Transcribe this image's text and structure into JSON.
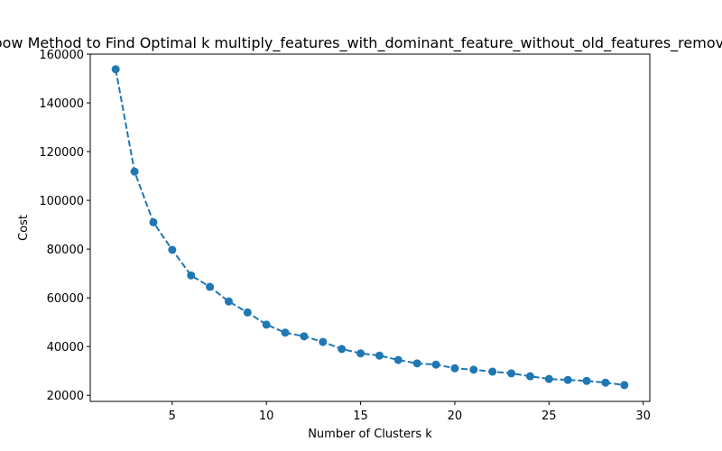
{
  "chart_data": {
    "type": "line",
    "title": "Elbow Method to Find Optimal k multiply_features_with_dominant_feature_without_old_features_removed",
    "xlabel": "Number of Clusters k",
    "ylabel": "Cost",
    "xlim": [
      0.65,
      30.35
    ],
    "ylim": [
      17500,
      160000
    ],
    "xticks": [
      5,
      10,
      15,
      20,
      25,
      30
    ],
    "yticks": [
      20000,
      40000,
      60000,
      80000,
      100000,
      120000,
      140000,
      160000
    ],
    "grid": false,
    "series": [
      {
        "color": "#1f77b4",
        "line_style": "dashed",
        "marker": "circle",
        "x": [
          2,
          3,
          4,
          5,
          6,
          7,
          8,
          9,
          10,
          11,
          12,
          13,
          14,
          15,
          16,
          17,
          18,
          19,
          20,
          21,
          22,
          23,
          24,
          25,
          26,
          27,
          28,
          29
        ],
        "y": [
          153800,
          111800,
          91000,
          79700,
          69200,
          64500,
          58500,
          54000,
          49000,
          45700,
          44200,
          41900,
          39000,
          37200,
          36300,
          34500,
          33100,
          32600,
          31100,
          30500,
          29700,
          29000,
          27800,
          26700,
          26300,
          25900,
          25200,
          24200
        ]
      }
    ]
  }
}
